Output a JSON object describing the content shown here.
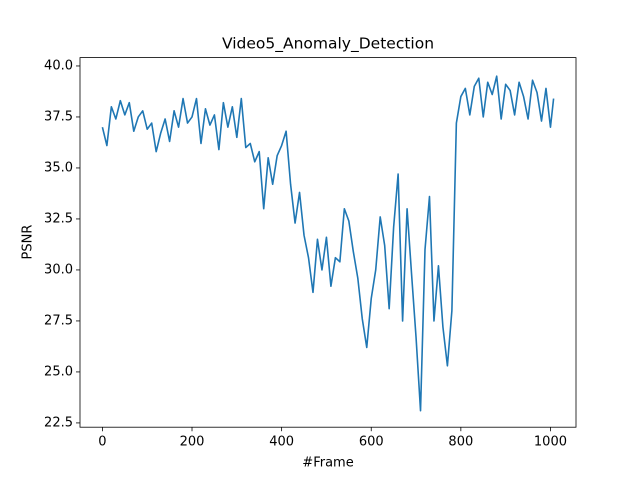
{
  "chart_data": {
    "type": "line",
    "title": "Video5_Anomaly_Detection",
    "x_label": "#Frame",
    "y_label": "PSNR",
    "x": [
      0,
      10,
      20,
      30,
      40,
      50,
      60,
      70,
      80,
      90,
      100,
      110,
      120,
      130,
      140,
      150,
      160,
      170,
      180,
      190,
      200,
      210,
      220,
      230,
      240,
      250,
      260,
      270,
      280,
      290,
      300,
      310,
      320,
      330,
      340,
      350,
      360,
      370,
      380,
      390,
      400,
      410,
      420,
      430,
      440,
      450,
      460,
      470,
      480,
      490,
      500,
      510,
      520,
      530,
      540,
      550,
      560,
      570,
      580,
      590,
      600,
      610,
      620,
      630,
      640,
      650,
      660,
      670,
      680,
      690,
      700,
      710,
      720,
      730,
      740,
      750,
      760,
      770,
      780,
      790,
      800,
      810,
      820,
      830,
      840,
      850,
      860,
      870,
      880,
      890,
      900,
      910,
      920,
      930,
      940,
      950,
      960,
      970,
      980,
      990,
      1000,
      1007
    ],
    "series": [
      {
        "color": "#1f77b4",
        "values": [
          37.0,
          36.1,
          38.0,
          37.4,
          38.3,
          37.6,
          38.2,
          36.8,
          37.5,
          37.8,
          36.9,
          37.2,
          35.8,
          36.7,
          37.4,
          36.3,
          37.8,
          37.0,
          38.4,
          37.2,
          37.5,
          38.4,
          36.2,
          37.9,
          37.1,
          37.6,
          35.9,
          38.2,
          37.0,
          38.0,
          36.5,
          38.4,
          36.0,
          36.2,
          35.3,
          35.8,
          33.0,
          35.5,
          34.2,
          35.6,
          36.1,
          36.8,
          34.2,
          32.3,
          33.8,
          31.7,
          30.6,
          28.9,
          31.5,
          30.0,
          31.6,
          29.2,
          30.6,
          30.4,
          33.0,
          32.4,
          30.9,
          29.6,
          27.6,
          26.2,
          28.6,
          30.0,
          32.6,
          31.2,
          28.1,
          32.1,
          34.7,
          27.5,
          33.0,
          29.8,
          26.7,
          23.1,
          31.0,
          33.6,
          27.5,
          30.2,
          27.2,
          25.3,
          28.0,
          37.2,
          38.5,
          38.9,
          37.6,
          39.0,
          39.4,
          37.5,
          39.2,
          38.6,
          39.5,
          37.4,
          39.1,
          38.8,
          37.6,
          39.2,
          38.5,
          37.4,
          39.3,
          38.7,
          37.3,
          38.9,
          37.0,
          38.4
        ]
      }
    ],
    "xlim": [
      -50,
      1057
    ],
    "ylim": [
      22.29,
      40.41
    ],
    "xticks": [
      0,
      200,
      400,
      600,
      800,
      1000
    ],
    "yticks": [
      22.5,
      {
        "value": 25,
        "label": "25.0"
      },
      27.5,
      {
        "value": 30,
        "label": "30.0"
      },
      32.5,
      {
        "value": 35,
        "label": "35.0"
      },
      37.5,
      {
        "value": 40,
        "label": "40.0"
      }
    ]
  }
}
